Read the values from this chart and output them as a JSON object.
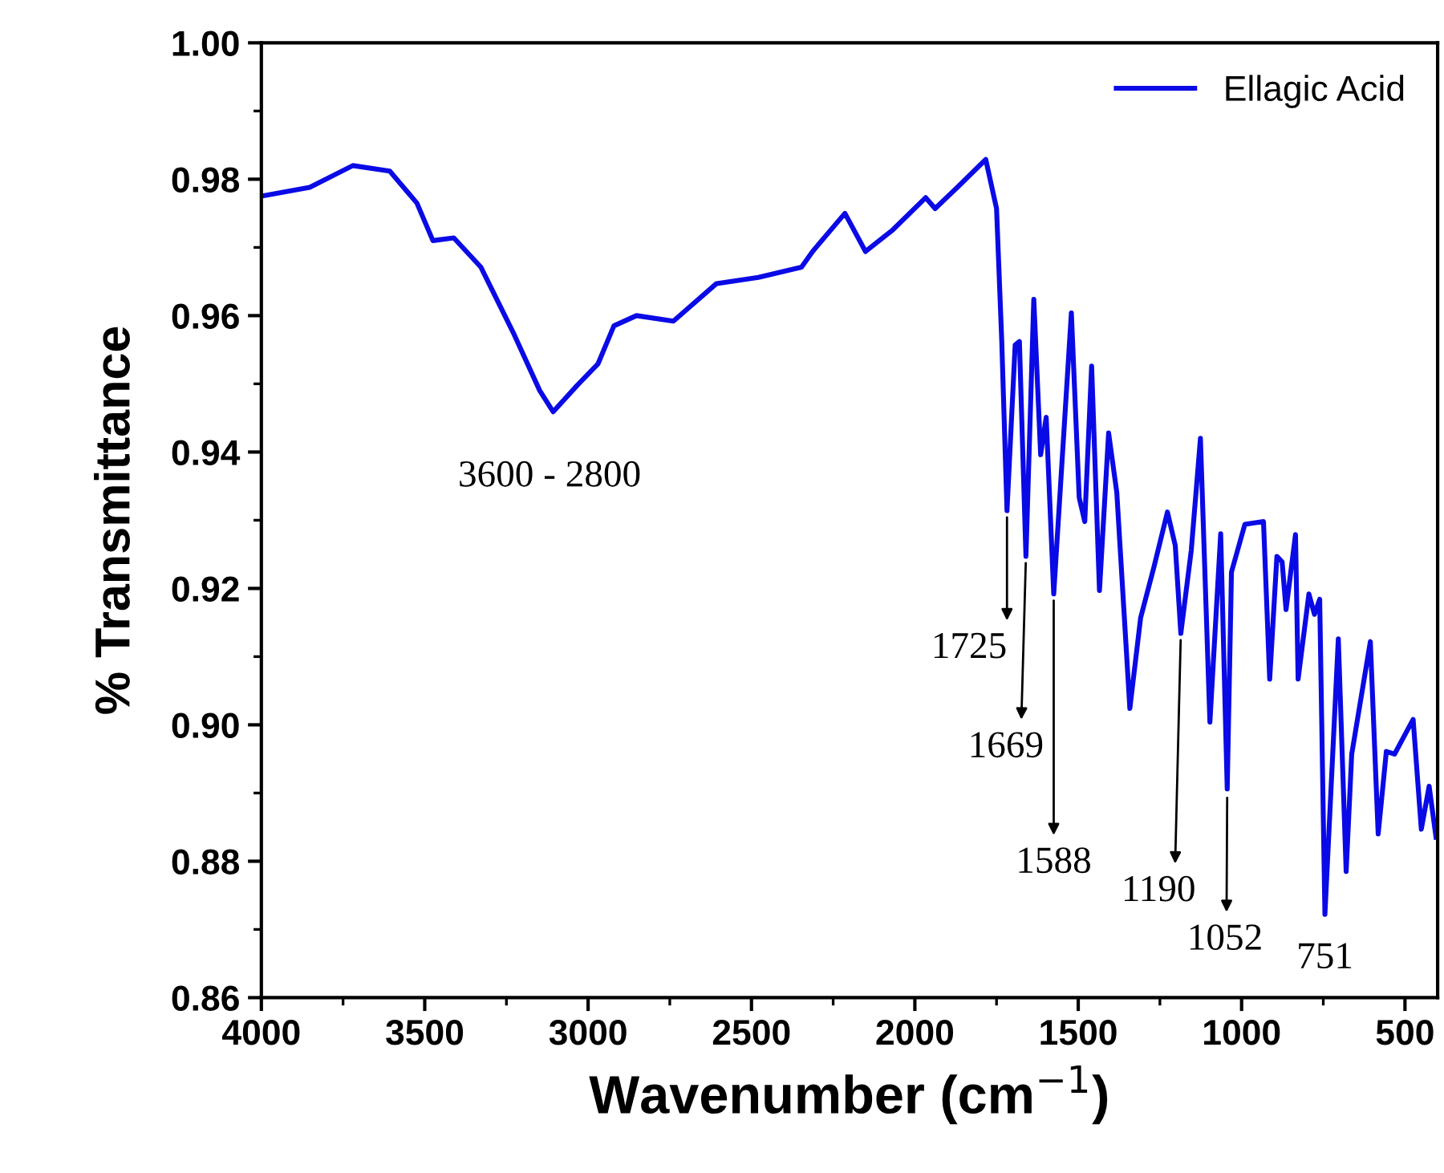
{
  "chart_data": {
    "type": "line",
    "xlabel": "Wavenumber (cm$^{−1}$)",
    "ylabel": "% Transmittance",
    "xlim": [
      4000,
      400
    ],
    "ylim": [
      0.86,
      1.0
    ],
    "xticks": [
      4000,
      3500,
      3000,
      2500,
      2000,
      1500,
      1000,
      500
    ],
    "yticks": [
      {
        "value": 0.86,
        "label": "0.86"
      },
      {
        "value": 0.88,
        "label": "0.88"
      },
      {
        "value": 0.9,
        "label": "0.90"
      },
      {
        "value": 0.92,
        "label": "0.92"
      },
      {
        "value": 0.94,
        "label": "0.94"
      },
      {
        "value": 0.96,
        "label": "0.96"
      },
      {
        "value": 0.98,
        "label": "0.98"
      },
      {
        "value": 1.0,
        "label": "1.00"
      }
    ],
    "grid": false,
    "legend": "top right",
    "marker": "none",
    "line_style": "solid",
    "series": [
      {
        "name": "Ellagic Acid",
        "color": "#0a0ae6",
        "x": [
          3990,
          3852,
          3720,
          3607,
          3524,
          3475,
          3411,
          3328,
          3230,
          3148,
          3107,
          3033,
          2970,
          2921,
          2852,
          2739,
          2607,
          2479,
          2347,
          2313,
          2214,
          2151,
          2067,
          1967,
          1938,
          1870,
          1783,
          1750,
          1734,
          1718,
          1693,
          1680,
          1660,
          1636,
          1615,
          1598,
          1575,
          1521,
          1497,
          1480,
          1459,
          1435,
          1407,
          1382,
          1342,
          1309,
          1268,
          1227,
          1203,
          1186,
          1154,
          1126,
          1097,
          1064,
          1044,
          1031,
          990,
          933,
          914,
          892,
          876,
          864,
          835,
          827,
          794,
          777,
          761,
          745,
          704,
          680,
          663,
          606,
          582,
          557,
          532,
          475,
          450,
          426,
          405
        ],
        "values": [
          0.9776,
          0.9788,
          0.982,
          0.9812,
          0.9765,
          0.971,
          0.9714,
          0.9671,
          0.9576,
          0.949,
          0.9459,
          0.9498,
          0.9529,
          0.9585,
          0.96,
          0.9592,
          0.9647,
          0.9656,
          0.9671,
          0.9694,
          0.975,
          0.9694,
          0.9726,
          0.9773,
          0.9757,
          0.9788,
          0.9829,
          0.9757,
          0.9562,
          0.9314,
          0.9557,
          0.9562,
          0.9247,
          0.9624,
          0.9396,
          0.9451,
          0.9192,
          0.9604,
          0.9333,
          0.9298,
          0.9526,
          0.9197,
          0.9428,
          0.9341,
          0.9024,
          0.9157,
          0.9232,
          0.9312,
          0.9263,
          0.9134,
          0.9256,
          0.942,
          0.9004,
          0.928,
          0.8906,
          0.9224,
          0.9294,
          0.9298,
          0.9067,
          0.9247,
          0.9239,
          0.9169,
          0.9279,
          0.9067,
          0.9192,
          0.9162,
          0.9184,
          0.8722,
          0.9126,
          0.8785,
          0.8957,
          0.9122,
          0.884,
          0.8961,
          0.8957,
          0.9008,
          0.8847,
          0.891,
          0.8835
        ]
      }
    ],
    "annotations": [
      "3600 - 2800",
      {
        "text": "1725",
        "x": 1718,
        "y": 0.9314
      },
      {
        "text": "1669",
        "x": 1660,
        "y": 0.9247
      },
      {
        "text": "1588",
        "x": 1575,
        "y": 0.9192
      },
      {
        "text": "1190",
        "x": 1186,
        "y": 0.9134
      },
      {
        "text": "1052",
        "x": 1044,
        "y": 0.8906
      },
      {
        "text": "751",
        "x": 745,
        "y": 0.8722
      }
    ]
  }
}
